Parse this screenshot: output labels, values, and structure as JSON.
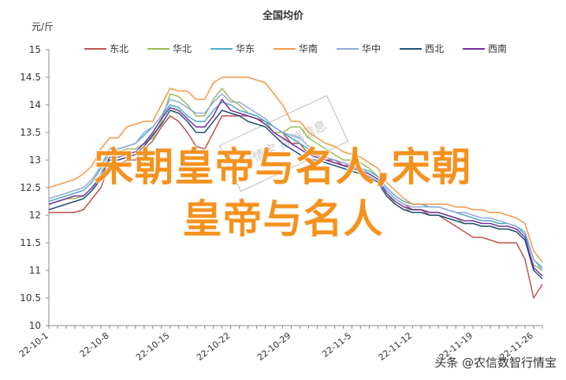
{
  "chart_data": {
    "type": "line",
    "title": "全国均价",
    "ylabel": "元/斤",
    "xlabel": "",
    "ylim": [
      10,
      15
    ],
    "yticks": [
      10,
      10.5,
      11,
      11.5,
      12,
      12.5,
      13,
      13.5,
      14,
      14.5,
      15
    ],
    "grid": false,
    "legend_position": "top",
    "x": [
      "22-10-1",
      "22-10-2",
      "22-10-3",
      "22-10-4",
      "22-10-5",
      "22-10-6",
      "22-10-7",
      "22-10-8",
      "22-10-9",
      "22-10-10",
      "22-10-11",
      "22-10-12",
      "22-10-13",
      "22-10-14",
      "22-10-15",
      "22-10-16",
      "22-10-17",
      "22-10-18",
      "22-10-19",
      "22-10-20",
      "22-10-21",
      "22-10-22",
      "22-10-23",
      "22-10-24",
      "22-10-25",
      "22-10-26",
      "22-10-27",
      "22-10-28",
      "22-10-29",
      "22-10-30",
      "22-10-31",
      "22-11-1",
      "22-11-2",
      "22-11-3",
      "22-11-4",
      "22-11-5",
      "22-11-6",
      "22-11-7",
      "22-11-8",
      "22-11-9",
      "22-11-10",
      "22-11-11",
      "22-11-12",
      "22-11-13",
      "22-11-14",
      "22-11-15",
      "22-11-16",
      "22-11-17",
      "22-11-18",
      "22-11-19",
      "22-11-20",
      "22-11-21",
      "22-11-22",
      "22-11-23",
      "22-11-24",
      "22-11-25",
      "22-11-26",
      "22-11-27"
    ],
    "xtick_labels": [
      "22-10-1",
      "22-10-8",
      "22-10-15",
      "22-10-22",
      "22-10-29",
      "22-11-5",
      "22-11-12",
      "22-11-19",
      "22-11-26"
    ],
    "series": [
      {
        "name": "东北",
        "color": "#c0504d",
        "values": [
          12.05,
          12.05,
          12.05,
          12.05,
          12.1,
          12.3,
          12.5,
          12.9,
          12.9,
          13.0,
          13.0,
          13.2,
          13.35,
          13.6,
          13.8,
          13.7,
          13.5,
          13.25,
          13.2,
          13.5,
          13.8,
          13.8,
          13.8,
          13.8,
          13.75,
          13.7,
          13.6,
          13.5,
          13.3,
          13.3,
          13.1,
          13.1,
          13.0,
          13.0,
          12.9,
          12.9,
          12.8,
          12.7,
          12.6,
          12.45,
          12.3,
          12.2,
          12.1,
          12.1,
          12.0,
          12.0,
          11.9,
          11.8,
          11.7,
          11.6,
          11.6,
          11.55,
          11.5,
          11.5,
          11.5,
          11.2,
          10.5,
          10.75
        ]
      },
      {
        "name": "华北",
        "color": "#9bbb59",
        "values": [
          12.2,
          12.25,
          12.3,
          12.3,
          12.35,
          12.5,
          12.75,
          13.15,
          13.15,
          13.2,
          13.2,
          13.3,
          13.4,
          13.7,
          14.2,
          14.15,
          14.0,
          13.8,
          13.8,
          14.1,
          14.3,
          14.1,
          14.0,
          13.85,
          13.8,
          13.7,
          13.5,
          13.5,
          13.6,
          13.6,
          13.4,
          13.3,
          13.2,
          13.1,
          13.0,
          13.0,
          12.95,
          12.85,
          12.7,
          12.4,
          12.2,
          12.1,
          12.1,
          12.1,
          12.05,
          12.05,
          12.0,
          11.95,
          11.85,
          11.85,
          11.8,
          11.8,
          11.75,
          11.75,
          11.7,
          11.55,
          11.1,
          11.0
        ]
      },
      {
        "name": "华东",
        "color": "#4bacc6",
        "values": [
          12.25,
          12.3,
          12.35,
          12.4,
          12.45,
          12.6,
          12.85,
          13.2,
          13.2,
          13.25,
          13.3,
          13.45,
          13.6,
          13.8,
          14.0,
          13.95,
          13.8,
          13.7,
          13.7,
          13.9,
          14.05,
          14.0,
          13.9,
          13.85,
          13.8,
          13.7,
          13.6,
          13.5,
          13.4,
          13.3,
          13.2,
          13.15,
          13.05,
          13.0,
          12.95,
          12.9,
          12.85,
          12.8,
          12.7,
          12.5,
          12.35,
          12.25,
          12.2,
          12.2,
          12.15,
          12.15,
          12.1,
          12.05,
          12.0,
          11.95,
          11.9,
          11.9,
          11.85,
          11.85,
          11.8,
          11.65,
          11.2,
          11.05
        ]
      },
      {
        "name": "华南",
        "color": "#f79646",
        "values": [
          12.5,
          12.55,
          12.6,
          12.65,
          12.75,
          12.9,
          13.2,
          13.4,
          13.4,
          13.6,
          13.65,
          13.7,
          13.7,
          14.0,
          14.3,
          14.25,
          14.25,
          14.1,
          14.1,
          14.4,
          14.5,
          14.5,
          14.5,
          14.5,
          14.45,
          14.4,
          14.2,
          14.0,
          13.7,
          13.7,
          13.5,
          13.4,
          13.3,
          13.25,
          13.15,
          13.1,
          13.05,
          12.95,
          12.85,
          12.6,
          12.45,
          12.3,
          12.2,
          12.2,
          12.2,
          12.2,
          12.2,
          12.15,
          12.15,
          12.1,
          12.1,
          12.05,
          12.05,
          12.0,
          11.95,
          11.85,
          11.35,
          11.15
        ]
      },
      {
        "name": "华中",
        "color": "#8faadc",
        "values": [
          12.3,
          12.35,
          12.4,
          12.45,
          12.5,
          12.65,
          12.9,
          13.2,
          13.2,
          13.25,
          13.3,
          13.5,
          13.6,
          13.8,
          14.1,
          14.05,
          13.95,
          13.85,
          13.85,
          14.05,
          14.2,
          14.05,
          14.05,
          13.95,
          13.85,
          13.75,
          13.6,
          13.5,
          13.45,
          13.4,
          13.25,
          13.15,
          13.05,
          13.0,
          12.95,
          12.9,
          12.85,
          12.75,
          12.65,
          12.45,
          12.3,
          12.2,
          12.15,
          12.15,
          12.15,
          12.15,
          12.1,
          12.05,
          12.05,
          12.0,
          11.95,
          11.95,
          11.9,
          11.85,
          11.8,
          11.7,
          11.2,
          11.0
        ]
      },
      {
        "name": "西北",
        "color": "#1f4e79",
        "values": [
          12.1,
          12.15,
          12.2,
          12.25,
          12.3,
          12.45,
          12.65,
          13.0,
          13.0,
          13.05,
          13.1,
          13.25,
          13.45,
          13.65,
          13.9,
          13.85,
          13.7,
          13.5,
          13.5,
          13.7,
          13.9,
          13.85,
          13.8,
          13.7,
          13.65,
          13.6,
          13.45,
          13.3,
          13.2,
          13.1,
          13.0,
          13.0,
          12.95,
          12.9,
          12.85,
          12.8,
          12.75,
          12.7,
          12.6,
          12.35,
          12.2,
          12.1,
          12.05,
          12.05,
          12.0,
          12.0,
          11.95,
          11.9,
          11.85,
          11.85,
          11.8,
          11.8,
          11.75,
          11.75,
          11.7,
          11.55,
          11.0,
          10.85
        ]
      },
      {
        "name": "西南",
        "color": "#7030a0",
        "values": [
          12.2,
          12.25,
          12.3,
          12.35,
          12.35,
          12.5,
          12.7,
          13.05,
          13.05,
          13.1,
          13.15,
          13.3,
          13.5,
          13.75,
          13.95,
          13.9,
          13.75,
          13.6,
          13.6,
          13.8,
          14.1,
          13.9,
          13.85,
          13.8,
          13.75,
          13.65,
          13.5,
          13.4,
          13.3,
          13.2,
          13.1,
          13.05,
          13.0,
          12.95,
          12.9,
          12.85,
          12.8,
          12.75,
          12.65,
          12.4,
          12.25,
          12.15,
          12.1,
          12.1,
          12.05,
          12.05,
          12.0,
          11.95,
          11.9,
          11.9,
          11.85,
          11.85,
          11.8,
          11.8,
          11.75,
          11.6,
          11.05,
          10.9
        ]
      }
    ]
  },
  "watermark": "行情宝 高端信息",
  "overlay": {
    "line1": "宋朝皇帝与名人,宋朝",
    "line2": "皇帝与名人"
  },
  "credit": "头条 @农信数智行情宝"
}
